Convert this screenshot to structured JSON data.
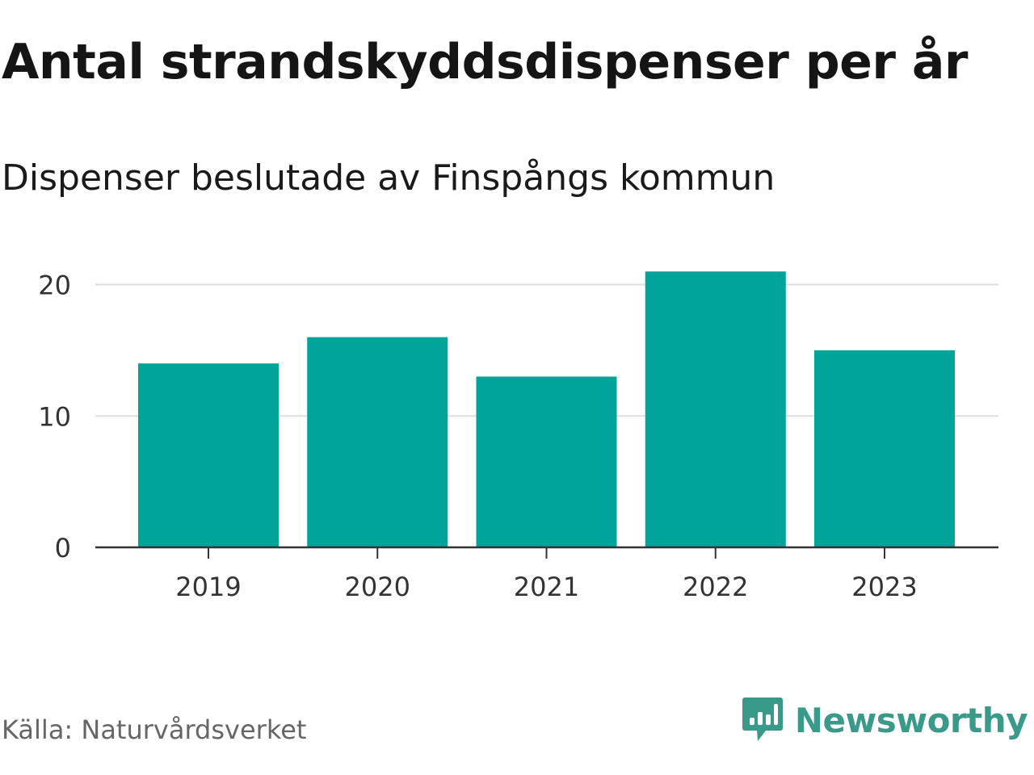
{
  "header": {
    "title": "Antal strandskyddsdispenser per år",
    "subtitle": "Dispenser beslutade av Finspångs kommun"
  },
  "footer": {
    "source": "Källa: Naturvårdsverket",
    "brand": "Newsworthy",
    "brand_icon": "newsworthy-logo-icon"
  },
  "colors": {
    "bar": "#00a499",
    "grid": "#dddddd",
    "axis": "#333333",
    "brand": "#3a9a8a"
  },
  "chart_data": {
    "type": "bar",
    "title": "Antal strandskyddsdispenser per år",
    "subtitle": "Dispenser beslutade av Finspångs kommun",
    "categories": [
      "2019",
      "2020",
      "2021",
      "2022",
      "2023"
    ],
    "values": [
      14,
      16,
      13,
      21,
      15
    ],
    "xlabel": "",
    "ylabel": "",
    "ylim": [
      0,
      22
    ],
    "yticks": [
      0,
      10,
      20
    ],
    "grid": true,
    "legend": "none"
  }
}
